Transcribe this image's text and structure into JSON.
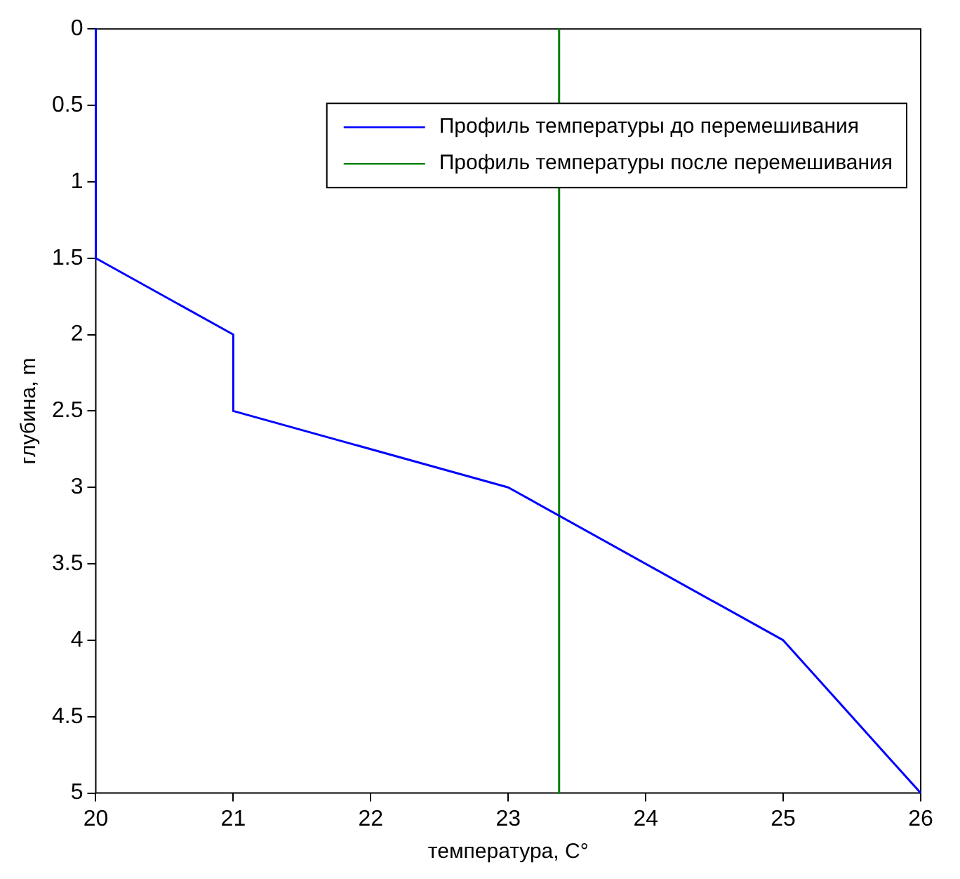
{
  "chart_data": {
    "type": "line",
    "xlabel": "температура, C°",
    "ylabel": "глубина, m",
    "xlim": [
      20,
      26
    ],
    "xticks": [
      20,
      21,
      22,
      23,
      24,
      25,
      26
    ],
    "ylim": [
      5,
      0
    ],
    "yticks": [
      0,
      0.5,
      1,
      1.5,
      2,
      2.5,
      3,
      3.5,
      4,
      4.5,
      5
    ],
    "grid": false,
    "legend": "top right",
    "marker": "none",
    "line_style": "solid",
    "series": [
      {
        "name": "Профиль температуры до перемешивания",
        "color": "#0000ff",
        "x": [
          20,
          20,
          21,
          21,
          23,
          25,
          26
        ],
        "values": [
          0,
          1.5,
          2,
          2.5,
          3,
          4,
          5
        ]
      },
      {
        "name": "Профиль температуры после перемешивания",
        "color": "#008000",
        "x": [
          23.37,
          23.37
        ],
        "values": [
          0,
          5
        ]
      }
    ]
  }
}
